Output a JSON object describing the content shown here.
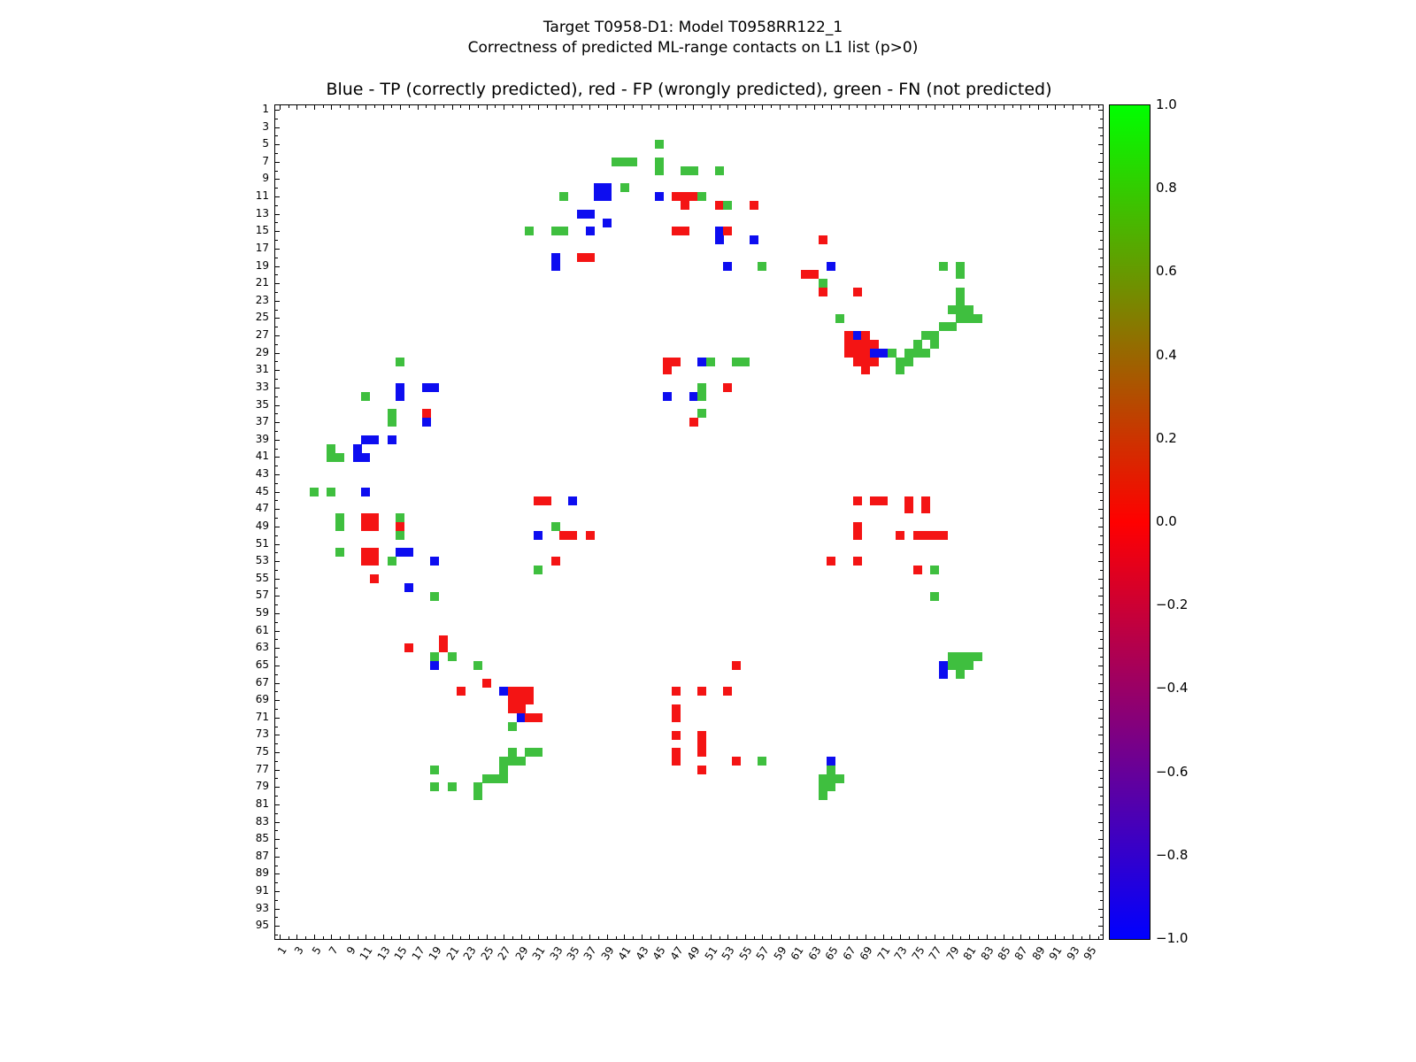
{
  "figure": {
    "suptitle_line1": "Target T0958-D1: Model T0958RR122_1",
    "suptitle_line2": "Correctness of predicted ML-range contacts on L1 list (p>0)",
    "axes_title": "Blue - TP (correctly predicted), red - FP (wrongly predicted), green - FN (not predicted)"
  },
  "chart_data": {
    "type": "heatmap",
    "title": "Blue - TP (correctly predicted), red - FP (wrongly predicted), green - FN (not predicted)",
    "suptitle": [
      "Target T0958-D1: Model T0958RR122_1",
      "Correctness of predicted ML-range contacts on L1 list (p>0)"
    ],
    "x_range": [
      1,
      96
    ],
    "y_range": [
      1,
      96
    ],
    "grid": false,
    "xticks": [
      1,
      3,
      5,
      7,
      9,
      11,
      13,
      15,
      17,
      19,
      21,
      23,
      25,
      27,
      29,
      31,
      33,
      35,
      37,
      39,
      41,
      43,
      45,
      47,
      49,
      51,
      53,
      55,
      57,
      59,
      61,
      63,
      65,
      67,
      69,
      71,
      73,
      75,
      77,
      79,
      81,
      83,
      85,
      87,
      89,
      91,
      93,
      95
    ],
    "yticks": [
      1,
      3,
      5,
      7,
      9,
      11,
      13,
      15,
      17,
      19,
      21,
      23,
      25,
      27,
      29,
      31,
      33,
      35,
      37,
      39,
      41,
      43,
      45,
      47,
      49,
      51,
      53,
      55,
      57,
      59,
      61,
      63,
      65,
      67,
      69,
      71,
      73,
      75,
      77,
      79,
      81,
      83,
      85,
      87,
      89,
      91,
      93,
      95
    ],
    "legend": {
      "blue": "TP (correctly predicted)",
      "red": "FP (wrongly predicted)",
      "green": "FN (not predicted)"
    },
    "colors": {
      "b": "#0d0df0",
      "r": "#f41414",
      "g": "#3fbf3f"
    },
    "colorbar": {
      "min": -1.0,
      "max": 1.0,
      "tick_labels": [
        "1.0",
        "0.8",
        "0.6",
        "0.4",
        "0.2",
        "0.0",
        "−0.2",
        "−0.4",
        "−0.6",
        "−0.8",
        "−1.0"
      ],
      "gradient": [
        "#00ff00",
        "#808000",
        "#ff0000",
        "#800080",
        "#0000ff"
      ]
    },
    "points": [
      [
        45,
        5,
        "g"
      ],
      [
        40,
        7,
        "g"
      ],
      [
        41,
        7,
        "g"
      ],
      [
        42,
        7,
        "g"
      ],
      [
        45,
        7,
        "g"
      ],
      [
        45,
        8,
        "g"
      ],
      [
        48,
        8,
        "g"
      ],
      [
        49,
        8,
        "g"
      ],
      [
        52,
        8,
        "g"
      ],
      [
        34,
        11,
        "g"
      ],
      [
        38,
        10,
        "b"
      ],
      [
        39,
        10,
        "b"
      ],
      [
        38,
        11,
        "b"
      ],
      [
        39,
        11,
        "b"
      ],
      [
        41,
        10,
        "g"
      ],
      [
        45,
        11,
        "b"
      ],
      [
        47,
        11,
        "r"
      ],
      [
        48,
        11,
        "r"
      ],
      [
        49,
        11,
        "r"
      ],
      [
        50,
        11,
        "g"
      ],
      [
        48,
        12,
        "r"
      ],
      [
        52,
        12,
        "r"
      ],
      [
        53,
        12,
        "g"
      ],
      [
        56,
        12,
        "r"
      ],
      [
        36,
        13,
        "b"
      ],
      [
        37,
        13,
        "b"
      ],
      [
        39,
        14,
        "b"
      ],
      [
        30,
        15,
        "g"
      ],
      [
        33,
        15,
        "g"
      ],
      [
        34,
        15,
        "g"
      ],
      [
        37,
        15,
        "b"
      ],
      [
        47,
        15,
        "r"
      ],
      [
        48,
        15,
        "r"
      ],
      [
        52,
        15,
        "b"
      ],
      [
        52,
        16,
        "b"
      ],
      [
        53,
        15,
        "r"
      ],
      [
        56,
        16,
        "b"
      ],
      [
        64,
        16,
        "r"
      ],
      [
        33,
        18,
        "b"
      ],
      [
        33,
        19,
        "b"
      ],
      [
        36,
        18,
        "r"
      ],
      [
        37,
        18,
        "r"
      ],
      [
        53,
        19,
        "b"
      ],
      [
        57,
        19,
        "g"
      ],
      [
        62,
        20,
        "r"
      ],
      [
        63,
        20,
        "r"
      ],
      [
        65,
        19,
        "b"
      ],
      [
        64,
        21,
        "g"
      ],
      [
        78,
        19,
        "g"
      ],
      [
        80,
        19,
        "g"
      ],
      [
        80,
        20,
        "g"
      ],
      [
        64,
        22,
        "r"
      ],
      [
        68,
        22,
        "r"
      ],
      [
        66,
        25,
        "g"
      ],
      [
        80,
        22,
        "g"
      ],
      [
        80,
        23,
        "g"
      ],
      [
        79,
        24,
        "g"
      ],
      [
        80,
        24,
        "g"
      ],
      [
        81,
        24,
        "g"
      ],
      [
        80,
        25,
        "g"
      ],
      [
        81,
        25,
        "g"
      ],
      [
        82,
        25,
        "g"
      ],
      [
        78,
        26,
        "g"
      ],
      [
        79,
        26,
        "g"
      ],
      [
        76,
        27,
        "g"
      ],
      [
        77,
        27,
        "g"
      ],
      [
        75,
        28,
        "g"
      ],
      [
        77,
        28,
        "g"
      ],
      [
        74,
        29,
        "g"
      ],
      [
        75,
        29,
        "g"
      ],
      [
        76,
        29,
        "g"
      ],
      [
        73,
        30,
        "g"
      ],
      [
        74,
        30,
        "g"
      ],
      [
        73,
        31,
        "g"
      ],
      [
        67,
        27,
        "r"
      ],
      [
        68,
        27,
        "b"
      ],
      [
        69,
        27,
        "r"
      ],
      [
        67,
        28,
        "r"
      ],
      [
        68,
        28,
        "r"
      ],
      [
        69,
        28,
        "r"
      ],
      [
        70,
        28,
        "r"
      ],
      [
        67,
        29,
        "r"
      ],
      [
        68,
        29,
        "r"
      ],
      [
        69,
        29,
        "r"
      ],
      [
        70,
        29,
        "b"
      ],
      [
        71,
        29,
        "b"
      ],
      [
        72,
        29,
        "g"
      ],
      [
        68,
        30,
        "r"
      ],
      [
        69,
        30,
        "r"
      ],
      [
        70,
        30,
        "r"
      ],
      [
        69,
        31,
        "r"
      ],
      [
        46,
        30,
        "r"
      ],
      [
        47,
        30,
        "r"
      ],
      [
        50,
        30,
        "b"
      ],
      [
        51,
        30,
        "g"
      ],
      [
        54,
        30,
        "g"
      ],
      [
        55,
        30,
        "g"
      ],
      [
        46,
        31,
        "r"
      ],
      [
        50,
        33,
        "g"
      ],
      [
        53,
        33,
        "r"
      ],
      [
        46,
        34,
        "b"
      ],
      [
        49,
        34,
        "b"
      ],
      [
        50,
        34,
        "g"
      ],
      [
        50,
        36,
        "g"
      ],
      [
        49,
        37,
        "r"
      ],
      [
        15,
        30,
        "g"
      ],
      [
        11,
        34,
        "g"
      ],
      [
        15,
        33,
        "b"
      ],
      [
        15,
        34,
        "b"
      ],
      [
        18,
        33,
        "b"
      ],
      [
        19,
        33,
        "b"
      ],
      [
        14,
        36,
        "g"
      ],
      [
        14,
        37,
        "g"
      ],
      [
        18,
        36,
        "r"
      ],
      [
        18,
        37,
        "b"
      ],
      [
        11,
        39,
        "b"
      ],
      [
        12,
        39,
        "b"
      ],
      [
        14,
        39,
        "b"
      ],
      [
        7,
        40,
        "g"
      ],
      [
        10,
        40,
        "b"
      ],
      [
        10,
        41,
        "b"
      ],
      [
        11,
        41,
        "b"
      ],
      [
        7,
        41,
        "g"
      ],
      [
        8,
        41,
        "g"
      ],
      [
        5,
        45,
        "g"
      ],
      [
        7,
        45,
        "g"
      ],
      [
        11,
        45,
        "b"
      ],
      [
        8,
        48,
        "g"
      ],
      [
        8,
        49,
        "g"
      ],
      [
        11,
        48,
        "r"
      ],
      [
        12,
        48,
        "r"
      ],
      [
        11,
        49,
        "r"
      ],
      [
        12,
        49,
        "r"
      ],
      [
        15,
        48,
        "g"
      ],
      [
        15,
        49,
        "r"
      ],
      [
        15,
        50,
        "g"
      ],
      [
        8,
        52,
        "g"
      ],
      [
        11,
        52,
        "r"
      ],
      [
        12,
        52,
        "r"
      ],
      [
        11,
        53,
        "r"
      ],
      [
        12,
        53,
        "r"
      ],
      [
        14,
        53,
        "g"
      ],
      [
        15,
        52,
        "b"
      ],
      [
        16,
        52,
        "b"
      ],
      [
        19,
        53,
        "b"
      ],
      [
        12,
        55,
        "r"
      ],
      [
        16,
        56,
        "b"
      ],
      [
        19,
        57,
        "g"
      ],
      [
        31,
        46,
        "r"
      ],
      [
        32,
        46,
        "r"
      ],
      [
        35,
        46,
        "b"
      ],
      [
        31,
        50,
        "b"
      ],
      [
        33,
        49,
        "g"
      ],
      [
        34,
        50,
        "r"
      ],
      [
        35,
        50,
        "r"
      ],
      [
        37,
        50,
        "r"
      ],
      [
        31,
        54,
        "g"
      ],
      [
        33,
        53,
        "r"
      ],
      [
        68,
        46,
        "r"
      ],
      [
        70,
        46,
        "r"
      ],
      [
        71,
        46,
        "r"
      ],
      [
        74,
        46,
        "r"
      ],
      [
        74,
        47,
        "r"
      ],
      [
        76,
        46,
        "r"
      ],
      [
        76,
        47,
        "r"
      ],
      [
        68,
        49,
        "r"
      ],
      [
        68,
        50,
        "r"
      ],
      [
        73,
        50,
        "r"
      ],
      [
        75,
        50,
        "r"
      ],
      [
        76,
        50,
        "r"
      ],
      [
        77,
        50,
        "r"
      ],
      [
        78,
        50,
        "r"
      ],
      [
        65,
        53,
        "r"
      ],
      [
        68,
        53,
        "r"
      ],
      [
        75,
        54,
        "r"
      ],
      [
        77,
        54,
        "g"
      ],
      [
        77,
        57,
        "g"
      ],
      [
        16,
        63,
        "r"
      ],
      [
        20,
        62,
        "r"
      ],
      [
        20,
        63,
        "r"
      ],
      [
        19,
        64,
        "g"
      ],
      [
        21,
        64,
        "g"
      ],
      [
        19,
        65,
        "b"
      ],
      [
        24,
        65,
        "g"
      ],
      [
        25,
        67,
        "r"
      ],
      [
        22,
        68,
        "r"
      ],
      [
        27,
        68,
        "b"
      ],
      [
        28,
        68,
        "r"
      ],
      [
        29,
        68,
        "r"
      ],
      [
        30,
        68,
        "r"
      ],
      [
        28,
        69,
        "r"
      ],
      [
        29,
        69,
        "r"
      ],
      [
        30,
        69,
        "r"
      ],
      [
        28,
        70,
        "r"
      ],
      [
        29,
        70,
        "r"
      ],
      [
        29,
        71,
        "b"
      ],
      [
        30,
        71,
        "r"
      ],
      [
        31,
        71,
        "r"
      ],
      [
        28,
        72,
        "g"
      ],
      [
        28,
        75,
        "g"
      ],
      [
        30,
        75,
        "g"
      ],
      [
        31,
        75,
        "g"
      ],
      [
        27,
        76,
        "g"
      ],
      [
        28,
        76,
        "g"
      ],
      [
        29,
        76,
        "g"
      ],
      [
        27,
        77,
        "g"
      ],
      [
        25,
        78,
        "g"
      ],
      [
        26,
        78,
        "g"
      ],
      [
        27,
        78,
        "g"
      ],
      [
        24,
        79,
        "g"
      ],
      [
        24,
        80,
        "g"
      ],
      [
        19,
        77,
        "g"
      ],
      [
        19,
        79,
        "g"
      ],
      [
        21,
        79,
        "g"
      ],
      [
        54,
        65,
        "r"
      ],
      [
        47,
        68,
        "r"
      ],
      [
        50,
        68,
        "r"
      ],
      [
        53,
        68,
        "r"
      ],
      [
        47,
        70,
        "r"
      ],
      [
        47,
        71,
        "r"
      ],
      [
        47,
        73,
        "r"
      ],
      [
        50,
        73,
        "r"
      ],
      [
        50,
        74,
        "r"
      ],
      [
        47,
        75,
        "r"
      ],
      [
        50,
        75,
        "r"
      ],
      [
        47,
        76,
        "r"
      ],
      [
        50,
        77,
        "r"
      ],
      [
        54,
        76,
        "r"
      ],
      [
        57,
        76,
        "g"
      ],
      [
        65,
        76,
        "b"
      ],
      [
        65,
        77,
        "g"
      ],
      [
        64,
        78,
        "g"
      ],
      [
        65,
        78,
        "g"
      ],
      [
        66,
        78,
        "g"
      ],
      [
        64,
        79,
        "g"
      ],
      [
        65,
        79,
        "g"
      ],
      [
        64,
        80,
        "g"
      ],
      [
        79,
        64,
        "g"
      ],
      [
        80,
        64,
        "g"
      ],
      [
        81,
        64,
        "g"
      ],
      [
        82,
        64,
        "g"
      ],
      [
        78,
        65,
        "b"
      ],
      [
        79,
        65,
        "g"
      ],
      [
        80,
        65,
        "g"
      ],
      [
        81,
        65,
        "g"
      ],
      [
        78,
        66,
        "b"
      ],
      [
        80,
        66,
        "g"
      ]
    ]
  }
}
